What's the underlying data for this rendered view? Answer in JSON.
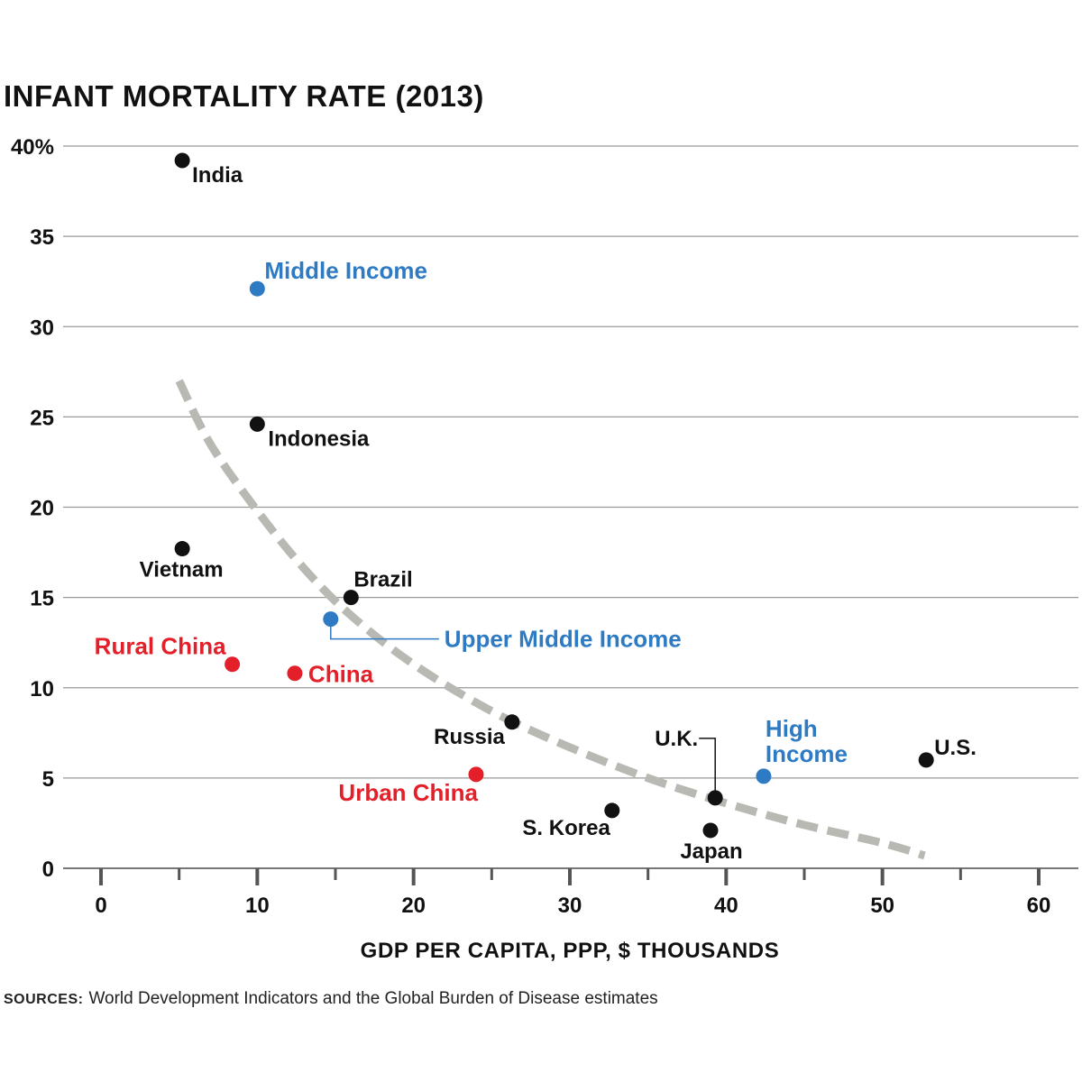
{
  "chart_data": {
    "type": "scatter",
    "title": "INFANT MORTALITY RATE (2013)",
    "xlabel": "GDP PER CAPITA, PPP, $ THOUSANDS",
    "ylabel": "",
    "xlim": [
      0,
      60
    ],
    "ylim": [
      0,
      40
    ],
    "x_ticks": [
      0,
      10,
      20,
      30,
      40,
      50,
      60
    ],
    "y_ticks": [
      0,
      5,
      10,
      15,
      20,
      25,
      30,
      35,
      40
    ],
    "y_tick_labels": [
      "0",
      "5",
      "10",
      "15",
      "20",
      "25",
      "30",
      "35",
      "40%"
    ],
    "grid": "horizontal",
    "colors": {
      "country": "#111111",
      "income_group": "#2e7bc4",
      "china": "#e3202a",
      "trend": "#b9b9b4",
      "grid": "#999999"
    },
    "points": [
      {
        "label": "India",
        "x": 5.2,
        "y": 39.2,
        "group": "country"
      },
      {
        "label": "Middle Income",
        "x": 10.0,
        "y": 32.1,
        "group": "income_group"
      },
      {
        "label": "Indonesia",
        "x": 10.0,
        "y": 24.6,
        "group": "country"
      },
      {
        "label": "Vietnam",
        "x": 5.2,
        "y": 17.7,
        "group": "country"
      },
      {
        "label": "Brazil",
        "x": 16.0,
        "y": 15.0,
        "group": "country"
      },
      {
        "label": "Upper Middle Income",
        "x": 14.7,
        "y": 13.8,
        "group": "income_group"
      },
      {
        "label": "Rural China",
        "x": 8.4,
        "y": 11.3,
        "group": "china"
      },
      {
        "label": "China",
        "x": 12.4,
        "y": 10.8,
        "group": "china"
      },
      {
        "label": "Russia",
        "x": 26.3,
        "y": 8.1,
        "group": "country"
      },
      {
        "label": "Urban China",
        "x": 24.0,
        "y": 5.2,
        "group": "china"
      },
      {
        "label": "U.K.",
        "x": 39.3,
        "y": 3.9,
        "group": "country"
      },
      {
        "label": "High Income",
        "x": 42.4,
        "y": 5.1,
        "group": "income_group"
      },
      {
        "label": "U.S.",
        "x": 52.8,
        "y": 6.0,
        "group": "country"
      },
      {
        "label": "S. Korea",
        "x": 32.7,
        "y": 3.2,
        "group": "country"
      },
      {
        "label": "Japan",
        "x": 39.0,
        "y": 2.1,
        "group": "country"
      }
    ],
    "trend_line": {
      "style": "dashed",
      "points": [
        [
          5.0,
          27.0
        ],
        [
          7.0,
          23.5
        ],
        [
          10.0,
          19.8
        ],
        [
          13.0,
          16.6
        ],
        [
          16.0,
          14.0
        ],
        [
          20.0,
          11.3
        ],
        [
          25.0,
          8.7
        ],
        [
          30.0,
          6.7
        ],
        [
          35.0,
          5.0
        ],
        [
          40.0,
          3.6
        ],
        [
          45.0,
          2.4
        ],
        [
          50.0,
          1.4
        ],
        [
          52.7,
          0.7
        ]
      ]
    }
  },
  "sources": {
    "label": "SOURCES:",
    "text": "World Development Indicators and the Global Burden of Disease estimates"
  }
}
